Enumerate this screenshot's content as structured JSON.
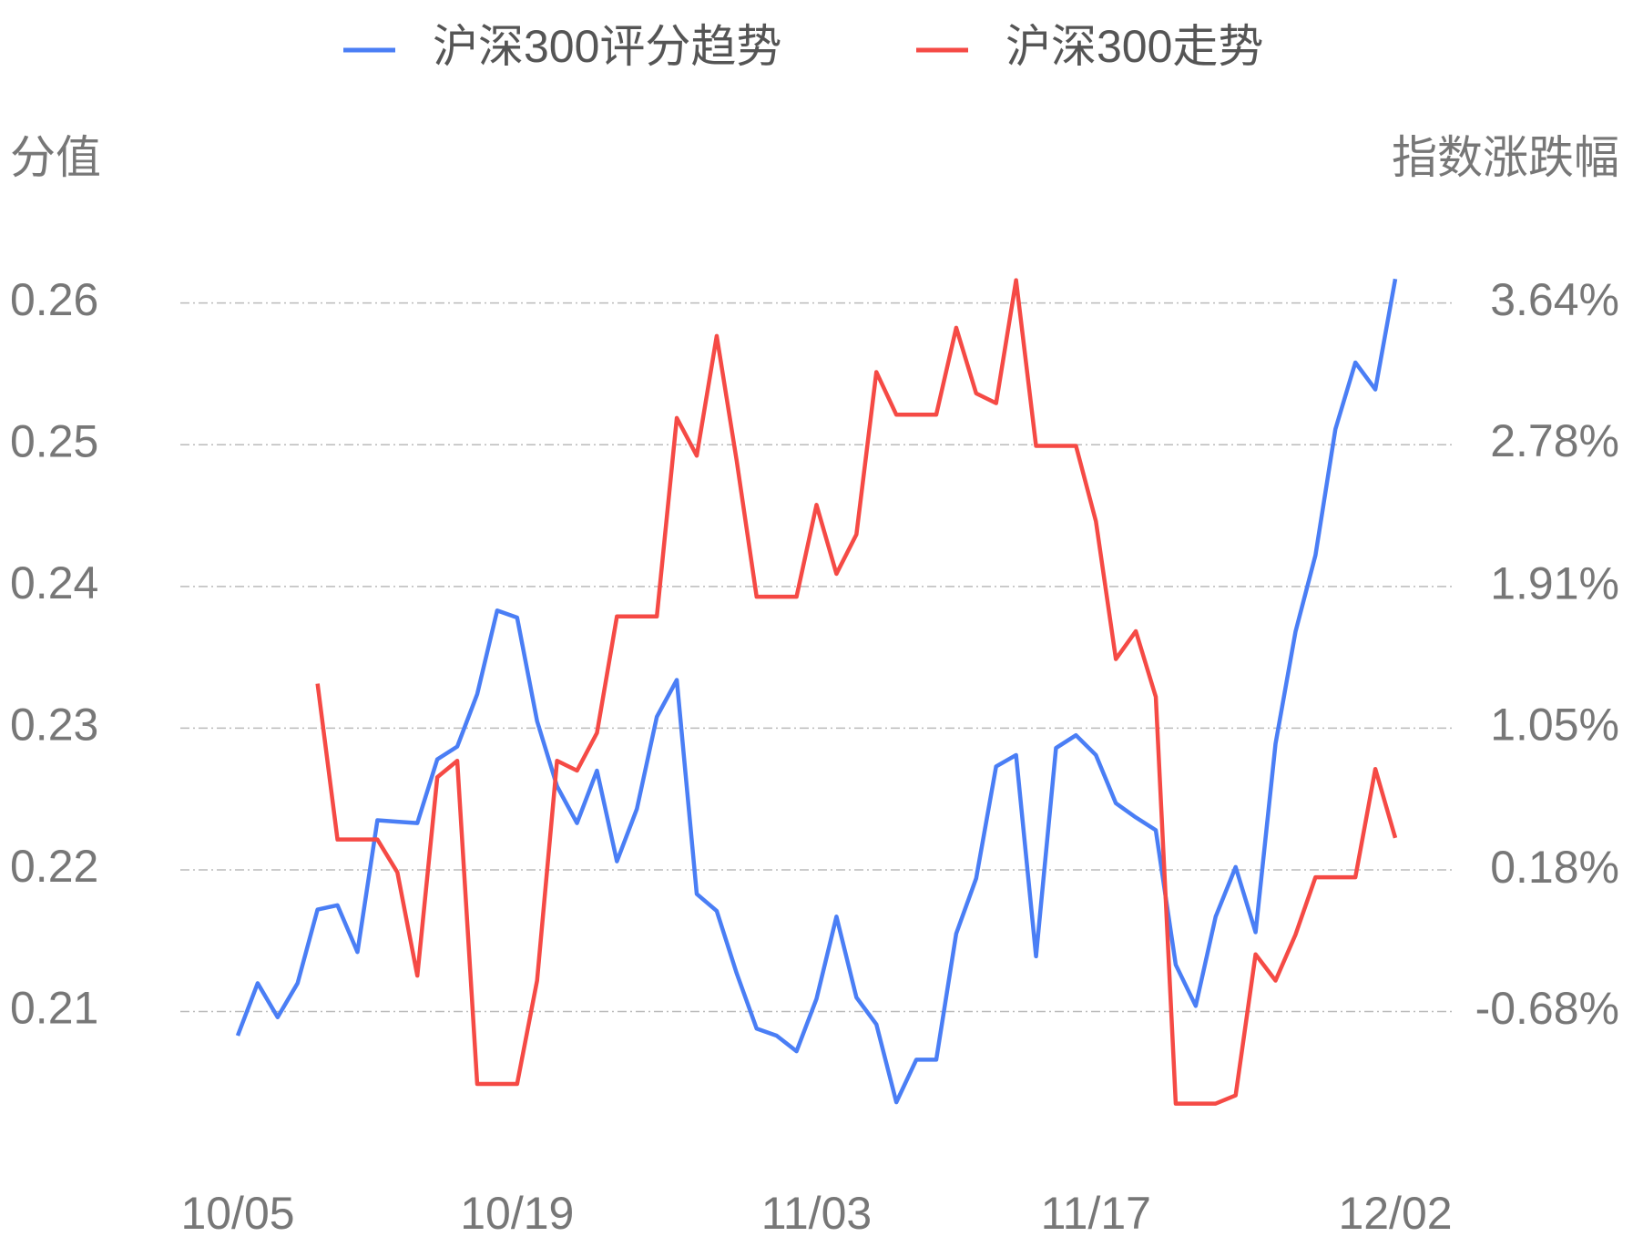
{
  "chart_data": {
    "type": "line",
    "legend": "top",
    "y_label": "分值",
    "y2_label": "指数涨跌幅",
    "categories": [
      "10/05",
      null,
      null,
      null,
      null,
      null,
      null,
      null,
      null,
      null,
      null,
      null,
      null,
      null,
      "10/19",
      null,
      null,
      null,
      null,
      null,
      null,
      null,
      null,
      null,
      null,
      null,
      null,
      null,
      null,
      "11/03",
      null,
      null,
      null,
      null,
      null,
      null,
      null,
      null,
      null,
      null,
      null,
      null,
      null,
      "11/17",
      null,
      null,
      null,
      null,
      null,
      null,
      null,
      null,
      null,
      null,
      null,
      null,
      null,
      null,
      "12/02"
    ],
    "ylim": [
      0.202,
      0.263
    ],
    "yticks": [
      0.21,
      0.22,
      0.23,
      0.24,
      0.25,
      0.26
    ],
    "y2lim": [
      -1.37,
      3.9
    ],
    "y2ticks": [
      {
        "value": -0.68,
        "label": "-0.68%"
      },
      {
        "value": 0.18,
        "label": "0.18%"
      },
      {
        "value": 1.05,
        "label": "1.05%"
      },
      {
        "value": 1.91,
        "label": "1.91%"
      },
      {
        "value": 2.78,
        "label": "2.78%"
      },
      {
        "value": 3.64,
        "label": "3.64%"
      }
    ],
    "grid": true,
    "series": [
      {
        "name": "沪深300评分趋势",
        "color": "#4a7ef5",
        "values": [
          0.2083,
          0.212,
          0.2096,
          0.212,
          0.2172,
          0.2175,
          0.2142,
          0.2235,
          0.2234,
          0.2233,
          0.2278,
          0.2287,
          0.2324,
          0.2383,
          0.2378,
          0.2305,
          0.2259,
          0.2233,
          0.227,
          0.2206,
          0.2243,
          0.2308,
          0.2334,
          0.2183,
          0.2171,
          0.2127,
          0.2088,
          0.2083,
          0.2072,
          0.2109,
          0.2167,
          0.211,
          0.2091,
          0.2036,
          0.2066,
          0.2066,
          0.2155,
          0.2194,
          0.2273,
          0.2281,
          0.2139,
          0.2286,
          0.2295,
          0.2281,
          0.2247,
          0.2237,
          0.2228,
          0.2133,
          0.2104,
          0.2167,
          0.2202,
          0.2156,
          0.2289,
          0.2368,
          0.2422,
          0.2511,
          0.2558,
          0.2539,
          0.2617
        ]
      },
      {
        "name": "沪深300走势",
        "color": "#f54a45",
        "axis": "y2",
        "values": [
          null,
          null,
          null,
          null,
          1.32,
          0.37,
          0.37,
          0.37,
          0.17,
          -0.46,
          0.75,
          0.85,
          -1.12,
          -1.12,
          -1.12,
          -0.49,
          0.85,
          0.79,
          1.02,
          1.73,
          1.73,
          1.73,
          2.94,
          2.71,
          3.44,
          2.68,
          1.85,
          1.85,
          1.85,
          2.41,
          1.99,
          2.23,
          3.22,
          2.96,
          2.96,
          2.96,
          3.49,
          3.09,
          3.03,
          3.78,
          2.77,
          2.77,
          2.77,
          2.31,
          1.47,
          1.64,
          1.24,
          -1.24,
          -1.24,
          -1.24,
          -1.19,
          -0.33,
          -0.49,
          -0.21,
          0.14,
          0.14,
          0.14,
          0.8,
          0.38
        ]
      }
    ]
  }
}
